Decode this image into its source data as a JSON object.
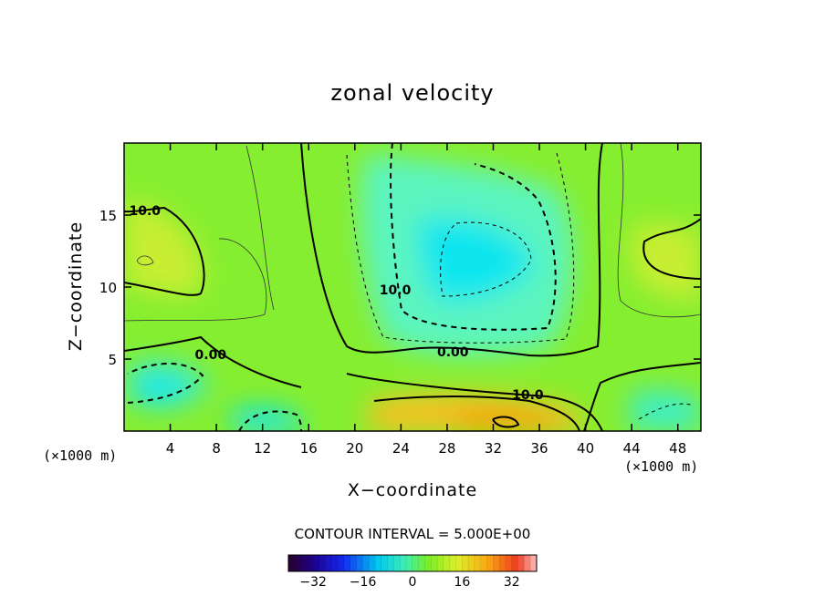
{
  "chart_data": {
    "type": "heatmap",
    "title": "zonal velocity",
    "xlabel": "X−coordinate",
    "ylabel": "Z−coordinate",
    "x_unit_left": "(×1000 m)",
    "x_unit_right": "(×1000 m)",
    "xlim": [
      0,
      50
    ],
    "ylim": [
      0,
      20
    ],
    "x_ticks": [
      4,
      8,
      12,
      16,
      20,
      24,
      28,
      32,
      36,
      40,
      44,
      48
    ],
    "y_ticks": [
      5,
      10,
      15
    ],
    "contour_interval_text": "CONTOUR INTERVAL = 5.000E+00",
    "contour_labels": [
      {
        "text": "10.0",
        "x": 1.8,
        "z": 15.0
      },
      {
        "text": "0.00",
        "x": 7.5,
        "z": 5.0
      },
      {
        "text": "10.0",
        "x": 23.5,
        "z": 9.5
      },
      {
        "text": "0.00",
        "x": 28.5,
        "z": 5.2
      },
      {
        "text": "10.0",
        "x": 35.0,
        "z": 2.2
      }
    ],
    "colorbar": {
      "min": -40,
      "max": 40,
      "tick_values": [
        -32,
        -16,
        0,
        16,
        32
      ],
      "tick_labels": [
        "−32",
        "−16",
        "0",
        "16",
        "32"
      ]
    },
    "colors": {
      "strong_negative": "#00e8ee",
      "moderate_negative": "#5cf5c0",
      "neutral": "#86ee30",
      "positive": "#c8ee30",
      "strong_positive": "#f8b010"
    }
  }
}
